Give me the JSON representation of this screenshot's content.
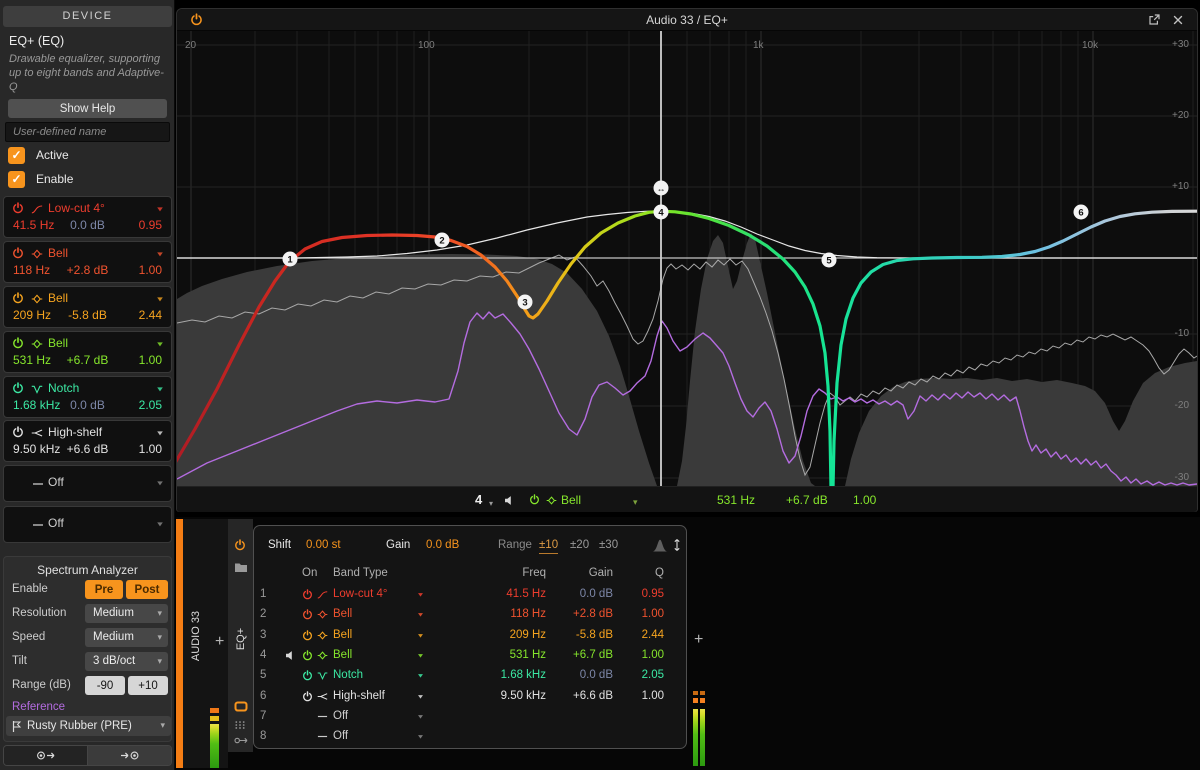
{
  "icons": {
    "check": "✓",
    "caret_down": "▾",
    "move_h": "↔"
  },
  "colors": {
    "accent": "#f7941d",
    "muted_gain": "#7d87a8",
    "reference": "#b46ce0",
    "track": "#f57d14"
  },
  "sidebar": {
    "header": "DEVICE",
    "device_title": "EQ+ (EQ)",
    "device_description": "Drawable equalizer, supporting up to eight bands and Adaptive-Q",
    "show_help": "Show Help",
    "name_placeholder": "User-defined name",
    "active_label": "Active",
    "enable_label": "Enable",
    "analyzer": {
      "title": "Spectrum Analyzer",
      "enable_label": "Enable",
      "pre": "Pre",
      "post": "Post",
      "resolution_label": "Resolution",
      "resolution_value": "Medium",
      "speed_label": "Speed",
      "speed_value": "Medium",
      "tilt_label": "Tilt",
      "tilt_value": "3 dB/oct",
      "range_label": "Range (dB)",
      "range_min": "-90",
      "range_max": "+10",
      "reference_label": "Reference",
      "reference_value": "Rusty Rubber (PRE)"
    }
  },
  "bands": [
    {
      "num": "1",
      "type": "Low-cut 4°",
      "freq": "41.5 Hz",
      "gain": "0.0 dB",
      "q": "0.95",
      "color": "#ee3d2e",
      "gain_muted": true
    },
    {
      "num": "2",
      "type": "Bell",
      "freq": "118 Hz",
      "gain": "+2.8 dB",
      "q": "1.00",
      "color": "#f0532f"
    },
    {
      "num": "3",
      "type": "Bell",
      "freq": "209 Hz",
      "gain": "-5.8 dB",
      "q": "2.44",
      "color": "#f6a41f"
    },
    {
      "num": "4",
      "type": "Bell",
      "freq": "531 Hz",
      "gain": "+6.7 dB",
      "q": "1.00",
      "color": "#86e62c",
      "audition": true
    },
    {
      "num": "5",
      "type": "Notch",
      "freq": "1.68 kHz",
      "gain": "0.0 dB",
      "q": "2.05",
      "color": "#3ce9a4",
      "gain_muted": true
    },
    {
      "num": "6",
      "type": "High-shelf",
      "freq": "9.50 kHz",
      "gain": "+6.6 dB",
      "q": "1.00",
      "color": "#e2e2e2"
    },
    {
      "num": "7",
      "type": "Off"
    },
    {
      "num": "8",
      "type": "Off"
    }
  ],
  "window": {
    "title": "Audio 33 / EQ+"
  },
  "graph": {
    "freq_ticks": [
      "20",
      "100",
      "1k",
      "10k"
    ],
    "db_ticks": [
      "+30",
      "+20",
      "+10",
      "-10",
      "-20",
      "-30"
    ]
  },
  "bottom": {
    "track_name": "AUDIO 33",
    "device_tab": "EQ+",
    "add_label": "+",
    "header": {
      "shift_label": "Shift",
      "shift_value": "0.00 st",
      "gain_label": "Gain",
      "gain_value": "0.0 dB",
      "range_label": "Range",
      "range_options": [
        "±10",
        "±20",
        "±30"
      ]
    },
    "table": {
      "on": "On",
      "type": "Band Type",
      "freq": "Freq",
      "gain": "Gain",
      "q": "Q"
    }
  }
}
